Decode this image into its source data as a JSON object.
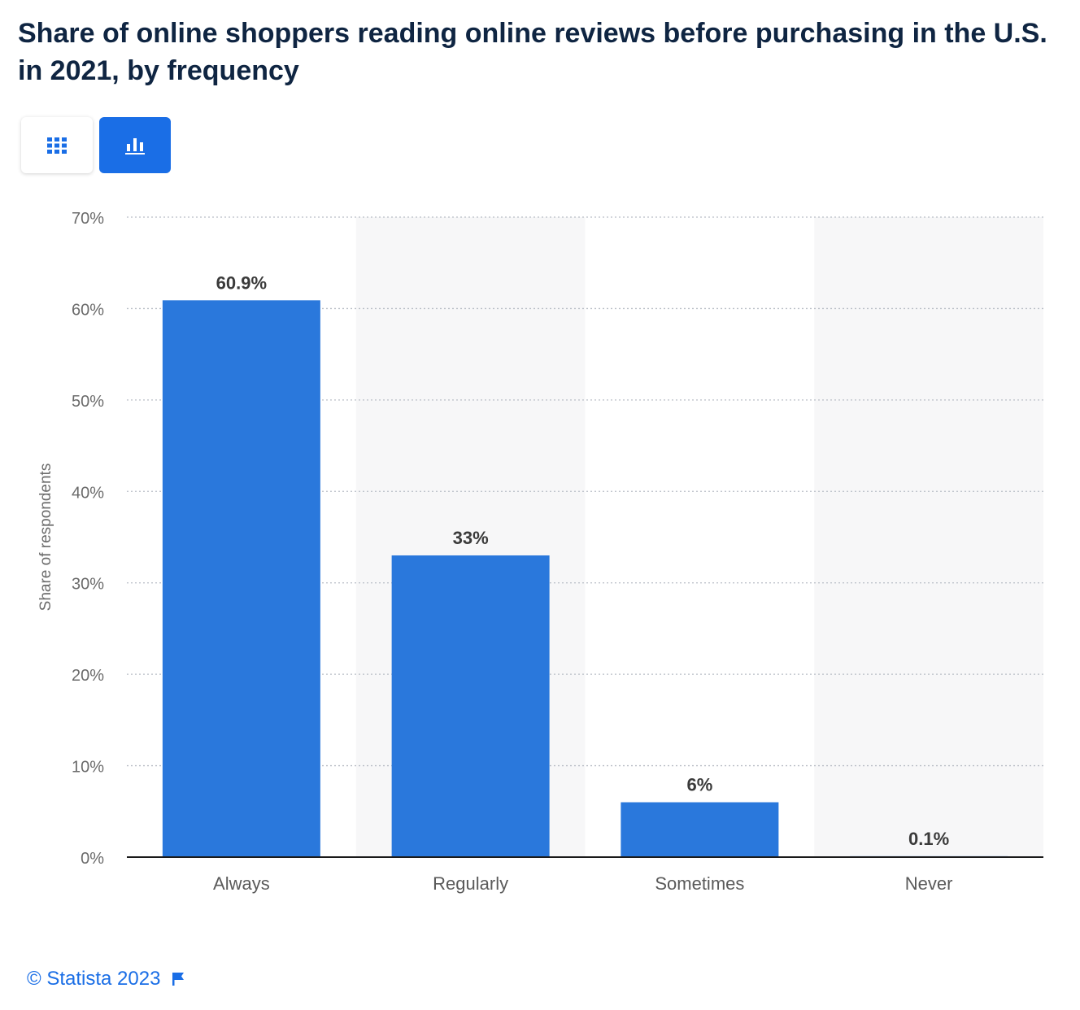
{
  "title": "Share of online shoppers reading online reviews before purchasing in the U.S. in 2021, by frequency",
  "view_toggle": {
    "table_icon": "grid-icon",
    "chart_icon": "bar-chart-icon",
    "active": "chart"
  },
  "colors": {
    "bar": "#2a78dc",
    "accent": "#1a6ee6",
    "title": "#0f2542"
  },
  "chart_data": {
    "type": "bar",
    "categories": [
      "Always",
      "Regularly",
      "Sometimes",
      "Never"
    ],
    "values": [
      60.9,
      33,
      6,
      0.1
    ],
    "data_labels": [
      "60.9%",
      "33%",
      "6%",
      "0.1%"
    ],
    "ylabel": "Share of respondents",
    "xlabel": "",
    "ylim": [
      0,
      70
    ],
    "yticks": [
      "0%",
      "10%",
      "20%",
      "30%",
      "40%",
      "50%",
      "60%",
      "70%"
    ],
    "grid": true
  },
  "footer": {
    "copyright": "© Statista 2023",
    "flag_icon": "flag-icon"
  }
}
